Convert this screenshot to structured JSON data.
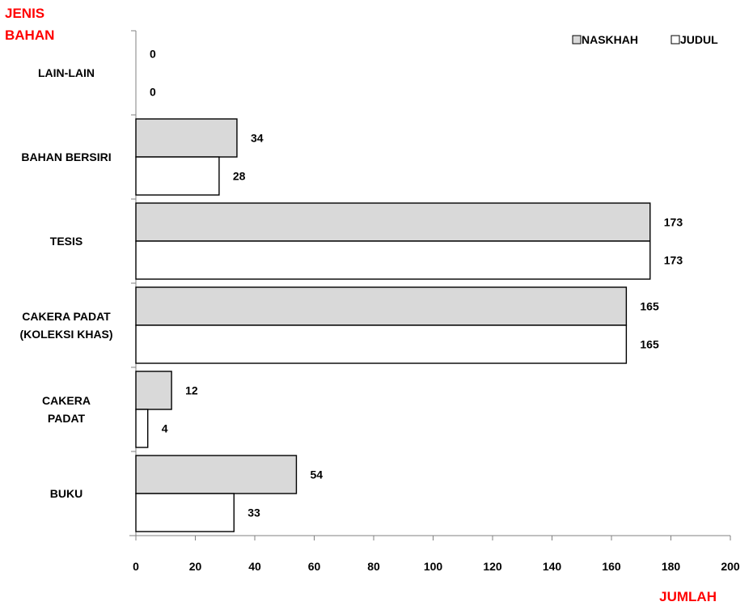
{
  "chart_data": {
    "type": "bar",
    "orientation": "horizontal",
    "y_axis_title": [
      "JENIS",
      "BAHAN"
    ],
    "x_axis_title": "JUMLAH",
    "categories": [
      [
        "LAIN-LAIN"
      ],
      [
        "BAHAN BERSIRI"
      ],
      [
        "TESIS"
      ],
      [
        "CAKERA PADAT",
        "(KOLEKSI KHAS)"
      ],
      [
        "CAKERA",
        "PADAT"
      ],
      [
        "BUKU"
      ]
    ],
    "series": [
      {
        "name": "NASKHAH",
        "color": "#d9d9d9",
        "values": [
          0,
          34,
          173,
          165,
          12,
          54
        ]
      },
      {
        "name": "JUDUL",
        "color": "#ffffff",
        "values": [
          0,
          28,
          173,
          165,
          4,
          33
        ]
      }
    ],
    "xlim": [
      0,
      200
    ],
    "x_ticks": [
      0,
      20,
      40,
      60,
      80,
      100,
      120,
      140,
      160,
      180,
      200
    ],
    "legend_position": "top-right",
    "grid": false
  }
}
